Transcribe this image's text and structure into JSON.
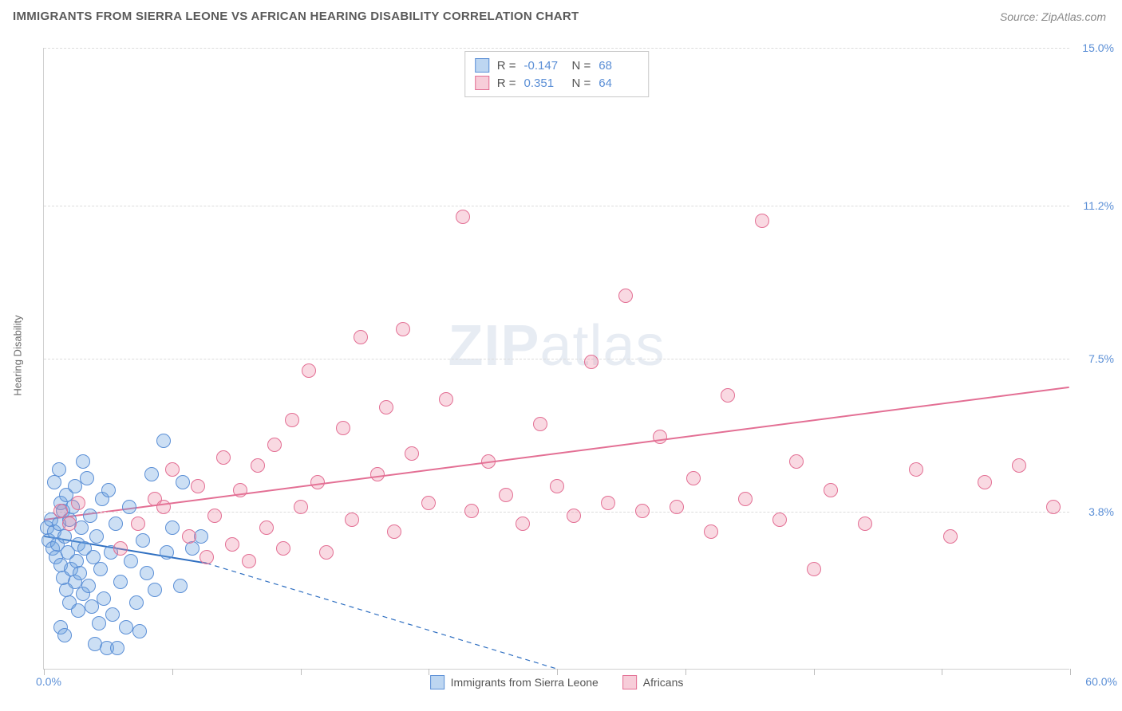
{
  "title": "IMMIGRANTS FROM SIERRA LEONE VS AFRICAN HEARING DISABILITY CORRELATION CHART",
  "source_text": "Source: ZipAtlas.com",
  "y_axis_label": "Hearing Disability",
  "watermark": {
    "bold": "ZIP",
    "light": "atlas"
  },
  "chart": {
    "type": "scatter",
    "xlim": [
      0,
      60
    ],
    "ylim": [
      0,
      15
    ],
    "y_ticks": [
      3.8,
      7.5,
      11.2,
      15.0
    ],
    "y_tick_labels": [
      "3.8%",
      "7.5%",
      "11.2%",
      "15.0%"
    ],
    "x_origin_label": "0.0%",
    "x_max_label": "60.0%",
    "x_tick_positions": [
      0,
      7.5,
      15,
      22.5,
      30,
      37.5,
      45,
      52.5,
      60
    ],
    "background_color": "#ffffff",
    "grid_color": "#dcdcdc",
    "axis_label_color": "#5b8fd6",
    "point_radius": 9,
    "point_stroke_width": 1.5,
    "trend_line_width": 2
  },
  "series": [
    {
      "key": "sierra_leone",
      "name": "Immigrants from Sierra Leone",
      "fill": "rgba(108,163,224,0.35)",
      "stroke": "#5b8fd6",
      "line_color": "#2f6fc1",
      "R": "-0.147",
      "N": "68",
      "trend": {
        "x0": 0,
        "y0": 3.2,
        "x1": 9.5,
        "y1": 2.55,
        "dash_extend_to_x": 30,
        "dash_extend_to_y": 0.0
      },
      "points": [
        [
          0.2,
          3.4
        ],
        [
          0.3,
          3.1
        ],
        [
          0.4,
          3.6
        ],
        [
          0.5,
          2.9
        ],
        [
          0.6,
          3.3
        ],
        [
          0.7,
          2.7
        ],
        [
          0.8,
          3.0
        ],
        [
          0.9,
          3.5
        ],
        [
          1.0,
          4.0
        ],
        [
          1.0,
          2.5
        ],
        [
          1.1,
          3.8
        ],
        [
          1.1,
          2.2
        ],
        [
          1.2,
          3.2
        ],
        [
          1.3,
          4.2
        ],
        [
          1.3,
          1.9
        ],
        [
          1.4,
          2.8
        ],
        [
          1.5,
          3.6
        ],
        [
          1.5,
          1.6
        ],
        [
          1.6,
          2.4
        ],
        [
          1.7,
          3.9
        ],
        [
          1.8,
          2.1
        ],
        [
          1.8,
          4.4
        ],
        [
          1.9,
          2.6
        ],
        [
          2.0,
          3.0
        ],
        [
          2.0,
          1.4
        ],
        [
          2.1,
          2.3
        ],
        [
          2.2,
          3.4
        ],
        [
          2.3,
          1.8
        ],
        [
          2.4,
          2.9
        ],
        [
          2.5,
          4.6
        ],
        [
          2.6,
          2.0
        ],
        [
          2.7,
          3.7
        ],
        [
          2.8,
          1.5
        ],
        [
          2.9,
          2.7
        ],
        [
          3.0,
          0.6
        ],
        [
          3.1,
          3.2
        ],
        [
          3.2,
          1.1
        ],
        [
          3.3,
          2.4
        ],
        [
          3.4,
          4.1
        ],
        [
          3.5,
          1.7
        ],
        [
          3.7,
          0.5
        ],
        [
          3.9,
          2.8
        ],
        [
          4.0,
          1.3
        ],
        [
          4.2,
          3.5
        ],
        [
          4.3,
          0.5
        ],
        [
          4.5,
          2.1
        ],
        [
          4.8,
          1.0
        ],
        [
          5.0,
          3.9
        ],
        [
          5.1,
          2.6
        ],
        [
          5.4,
          1.6
        ],
        [
          5.6,
          0.9
        ],
        [
          5.8,
          3.1
        ],
        [
          6.0,
          2.3
        ],
        [
          6.3,
          4.7
        ],
        [
          6.5,
          1.9
        ],
        [
          7.0,
          5.5
        ],
        [
          7.2,
          2.8
        ],
        [
          7.5,
          3.4
        ],
        [
          8.0,
          2.0
        ],
        [
          8.1,
          4.5
        ],
        [
          8.7,
          2.9
        ],
        [
          9.2,
          3.2
        ],
        [
          0.6,
          4.5
        ],
        [
          0.9,
          4.8
        ],
        [
          1.0,
          1.0
        ],
        [
          1.2,
          0.8
        ],
        [
          3.8,
          4.3
        ],
        [
          2.3,
          5.0
        ]
      ]
    },
    {
      "key": "africans",
      "name": "Africans",
      "fill": "rgba(235,130,160,0.30)",
      "stroke": "#e36f94",
      "line_color": "#e36f94",
      "R": "0.351",
      "N": "64",
      "trend": {
        "x0": 0,
        "y0": 3.6,
        "x1": 60,
        "y1": 6.8
      },
      "points": [
        [
          1.0,
          3.8
        ],
        [
          1.5,
          3.5
        ],
        [
          2.0,
          4.0
        ],
        [
          4.5,
          2.9
        ],
        [
          5.5,
          3.5
        ],
        [
          6.5,
          4.1
        ],
        [
          7.0,
          3.9
        ],
        [
          7.5,
          4.8
        ],
        [
          8.5,
          3.2
        ],
        [
          9.0,
          4.4
        ],
        [
          9.5,
          2.7
        ],
        [
          10.0,
          3.7
        ],
        [
          10.5,
          5.1
        ],
        [
          11.0,
          3.0
        ],
        [
          11.5,
          4.3
        ],
        [
          12.0,
          2.6
        ],
        [
          12.5,
          4.9
        ],
        [
          13.0,
          3.4
        ],
        [
          13.5,
          5.4
        ],
        [
          14.0,
          2.9
        ],
        [
          14.5,
          6.0
        ],
        [
          15.0,
          3.9
        ],
        [
          15.5,
          7.2
        ],
        [
          16.0,
          4.5
        ],
        [
          16.5,
          2.8
        ],
        [
          17.5,
          5.8
        ],
        [
          18.0,
          3.6
        ],
        [
          18.5,
          8.0
        ],
        [
          19.5,
          4.7
        ],
        [
          20.0,
          6.3
        ],
        [
          20.5,
          3.3
        ],
        [
          21.0,
          8.2
        ],
        [
          21.5,
          5.2
        ],
        [
          22.5,
          4.0
        ],
        [
          23.5,
          6.5
        ],
        [
          24.5,
          10.9
        ],
        [
          25.0,
          3.8
        ],
        [
          26.0,
          5.0
        ],
        [
          27.0,
          4.2
        ],
        [
          28.0,
          3.5
        ],
        [
          29.0,
          5.9
        ],
        [
          30.0,
          4.4
        ],
        [
          31.0,
          3.7
        ],
        [
          32.0,
          7.4
        ],
        [
          33.0,
          4.0
        ],
        [
          34.0,
          9.0
        ],
        [
          35.0,
          3.8
        ],
        [
          36.0,
          5.6
        ],
        [
          37.0,
          3.9
        ],
        [
          38.0,
          4.6
        ],
        [
          39.0,
          3.3
        ],
        [
          40.0,
          6.6
        ],
        [
          41.0,
          4.1
        ],
        [
          42.0,
          10.8
        ],
        [
          43.0,
          3.6
        ],
        [
          44.0,
          5.0
        ],
        [
          45.0,
          2.4
        ],
        [
          46.0,
          4.3
        ],
        [
          48.0,
          3.5
        ],
        [
          51.0,
          4.8
        ],
        [
          53.0,
          3.2
        ],
        [
          55.0,
          4.5
        ],
        [
          57.0,
          4.9
        ],
        [
          59.0,
          3.9
        ]
      ]
    }
  ],
  "legend": {
    "blue_swatch": {
      "fill": "rgba(108,163,224,0.45)",
      "stroke": "#5b8fd6"
    },
    "pink_swatch": {
      "fill": "rgba(235,130,160,0.40)",
      "stroke": "#e36f94"
    }
  }
}
